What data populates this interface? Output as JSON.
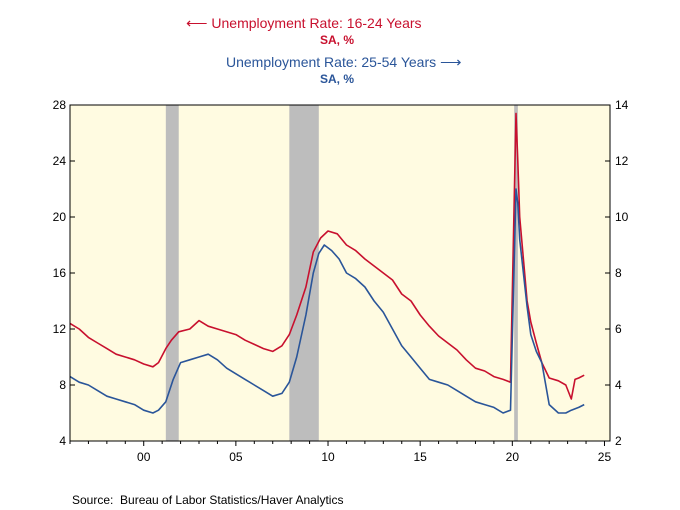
{
  "chart_data": {
    "type": "line",
    "x_axis": {
      "range": [
        1996,
        2025.3
      ],
      "ticks": [
        2000,
        2005,
        2010,
        2015,
        2020,
        2025
      ],
      "tick_labels": [
        "00",
        "05",
        "10",
        "15",
        "20",
        "25"
      ]
    },
    "left_axis": {
      "range": [
        4,
        28
      ],
      "ticks": [
        4,
        8,
        12,
        16,
        20,
        24,
        28
      ],
      "tick_labels": [
        "4",
        "8",
        "12",
        "16",
        "20",
        "24",
        "28"
      ]
    },
    "right_axis": {
      "range": [
        2,
        14
      ],
      "ticks": [
        2,
        4,
        6,
        8,
        10,
        12,
        14
      ],
      "tick_labels": [
        "2",
        "4",
        "6",
        "8",
        "10",
        "12",
        "14"
      ]
    },
    "recessions": [
      [
        2001.2,
        2001.9
      ],
      [
        2007.9,
        2009.5
      ],
      [
        2020.1,
        2020.3
      ]
    ],
    "series": [
      {
        "name": "Unemployment Rate: 16-24 Years",
        "units": "SA, %",
        "axis": "left",
        "color": "#c8102e",
        "x": [
          1996.0,
          1996.5,
          1997.0,
          1997.5,
          1998.0,
          1998.5,
          1999.0,
          1999.5,
          2000.0,
          2000.5,
          2000.8,
          2001.2,
          2001.5,
          2001.9,
          2002.5,
          2003.0,
          2003.5,
          2004.0,
          2005.0,
          2005.5,
          2006.0,
          2006.5,
          2007.0,
          2007.5,
          2007.9,
          2008.3,
          2008.8,
          2009.2,
          2009.6,
          2010.0,
          2010.5,
          2011.0,
          2011.5,
          2012.0,
          2012.5,
          2013.0,
          2013.5,
          2014.0,
          2014.5,
          2015.0,
          2015.5,
          2016.0,
          2016.5,
          2017.0,
          2017.5,
          2018.0,
          2018.5,
          2019.0,
          2019.5,
          2019.9,
          2020.2,
          2020.3,
          2020.4,
          2020.6,
          2020.8,
          2021.0,
          2021.3,
          2021.6,
          2022.0,
          2022.5,
          2022.9,
          2023.2,
          2023.4,
          2023.6,
          2023.9
        ],
        "values": [
          12.4,
          12.0,
          11.4,
          11.0,
          10.6,
          10.2,
          10.0,
          9.8,
          9.5,
          9.3,
          9.6,
          10.6,
          11.2,
          11.8,
          12.0,
          12.6,
          12.2,
          12.0,
          11.6,
          11.2,
          10.9,
          10.6,
          10.4,
          10.8,
          11.6,
          13.0,
          15.0,
          17.5,
          18.5,
          19.0,
          18.8,
          18.0,
          17.6,
          17.0,
          16.5,
          16.0,
          15.5,
          14.5,
          14.0,
          13.0,
          12.2,
          11.5,
          11.0,
          10.5,
          9.8,
          9.2,
          9.0,
          8.6,
          8.4,
          8.2,
          27.4,
          24.0,
          20.0,
          17.0,
          14.0,
          12.5,
          11.0,
          9.6,
          8.5,
          8.3,
          8.0,
          7.0,
          8.4,
          8.5,
          8.7
        ]
      },
      {
        "name": "Unemployment Rate: 25-54 Years",
        "units": "SA, %",
        "axis": "right",
        "color": "#2a5599",
        "x": [
          1996.0,
          1996.5,
          1997.0,
          1997.5,
          1998.0,
          1998.5,
          1999.0,
          1999.5,
          2000.0,
          2000.5,
          2000.8,
          2001.2,
          2001.6,
          2002.0,
          2002.5,
          2003.0,
          2003.5,
          2004.0,
          2004.5,
          2005.0,
          2005.5,
          2006.0,
          2006.5,
          2007.0,
          2007.5,
          2007.9,
          2008.3,
          2008.8,
          2009.2,
          2009.5,
          2009.8,
          2010.2,
          2010.6,
          2011.0,
          2011.5,
          2012.0,
          2012.5,
          2013.0,
          2013.5,
          2014.0,
          2014.5,
          2015.0,
          2015.5,
          2016.0,
          2016.5,
          2017.0,
          2017.5,
          2018.0,
          2018.5,
          2019.0,
          2019.5,
          2019.9,
          2020.2,
          2020.3,
          2020.4,
          2020.6,
          2020.8,
          2021.0,
          2021.3,
          2021.6,
          2022.0,
          2022.5,
          2022.9,
          2023.2,
          2023.6,
          2023.9
        ],
        "values": [
          4.3,
          4.1,
          4.0,
          3.8,
          3.6,
          3.5,
          3.4,
          3.3,
          3.1,
          3.0,
          3.1,
          3.4,
          4.2,
          4.8,
          4.9,
          5.0,
          5.1,
          4.9,
          4.6,
          4.4,
          4.2,
          4.0,
          3.8,
          3.6,
          3.7,
          4.1,
          5.0,
          6.5,
          8.0,
          8.7,
          9.0,
          8.8,
          8.5,
          8.0,
          7.8,
          7.5,
          7.0,
          6.6,
          6.0,
          5.4,
          5.0,
          4.6,
          4.2,
          4.1,
          4.0,
          3.8,
          3.6,
          3.4,
          3.3,
          3.2,
          3.0,
          3.1,
          11.0,
          10.5,
          9.2,
          8.0,
          6.8,
          5.8,
          5.2,
          4.8,
          3.3,
          3.0,
          3.0,
          3.1,
          3.2,
          3.3
        ]
      }
    ]
  },
  "legend": {
    "series1_label": "Unemployment Rate: 16-24 Years",
    "series1_units": "SA, %",
    "series2_label": "Unemployment Rate: 25-54 Years",
    "series2_units": "SA, %"
  },
  "source": "Source:  Bureau of Labor Statistics/Haver Analytics",
  "colors": {
    "plot_bg": "#fffbe1",
    "recession": "#bdbdbd",
    "red": "#c8102e",
    "blue": "#2a5599"
  }
}
